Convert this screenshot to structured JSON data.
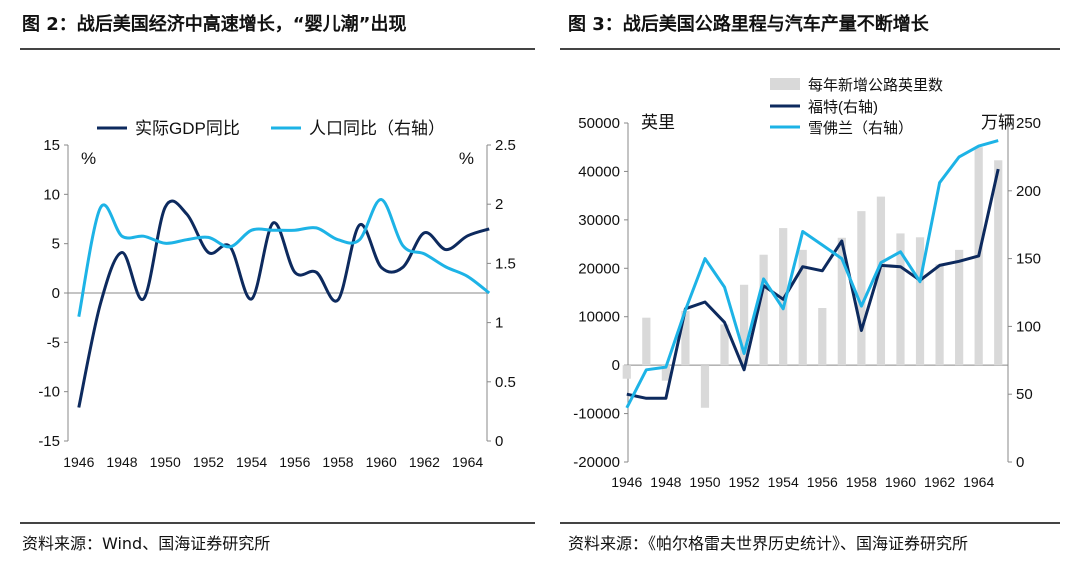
{
  "left": {
    "title": "图 2：战后美国经济中高速增长，“婴儿潮”出现",
    "source": "资料来源：Wind、国海证券研究所"
  },
  "right": {
    "title": "图 3：战后美国公路里程与汽车产量不断增长",
    "source": "资料来源：《帕尔格雷夫世界历史统计》、国海证券研究所"
  },
  "chart_data": [
    {
      "type": "line",
      "title": "战后美国经济中高速增长，“婴儿潮”出现",
      "x": [
        1946,
        1947,
        1948,
        1949,
        1950,
        1951,
        1952,
        1953,
        1954,
        1955,
        1956,
        1957,
        1958,
        1959,
        1960,
        1961,
        1962,
        1963,
        1964,
        1965
      ],
      "x_ticks": [
        "1946",
        "1948",
        "1950",
        "1952",
        "1954",
        "1956",
        "1958",
        "1960",
        "1962",
        "1964"
      ],
      "y_left_label": "%",
      "y_right_label": "%",
      "y_left_lim": [
        -15,
        15
      ],
      "y_left_ticks": [
        "15",
        "10",
        "5",
        "0",
        "-5",
        "-10",
        "-15"
      ],
      "y_right_lim": [
        0,
        2.5
      ],
      "y_right_ticks": [
        "2.5",
        "2",
        "1.5",
        "1",
        "0.5",
        "0"
      ],
      "legend_position": "top",
      "series": [
        {
          "name": "实际GDP同比",
          "axis": "left",
          "color": "#0d2a5e",
          "values": [
            -11.6,
            -1.1,
            4.1,
            -0.6,
            8.7,
            8.0,
            4.1,
            4.7,
            -0.6,
            7.1,
            2.1,
            2.1,
            -0.7,
            6.9,
            2.6,
            2.6,
            6.1,
            4.4,
            5.8,
            6.5
          ]
        },
        {
          "name": "人口同比（右轴）",
          "axis": "right",
          "color": "#1db3e6",
          "values": [
            1.05,
            1.97,
            1.73,
            1.73,
            1.67,
            1.7,
            1.72,
            1.64,
            1.78,
            1.78,
            1.78,
            1.8,
            1.7,
            1.7,
            2.04,
            1.65,
            1.58,
            1.47,
            1.39,
            1.25
          ]
        }
      ],
      "grid": false
    },
    {
      "type": "bar+line",
      "title": "战后美国公路里程与汽车产量不断增长",
      "x": [
        1946,
        1947,
        1948,
        1949,
        1950,
        1951,
        1952,
        1953,
        1954,
        1955,
        1956,
        1957,
        1958,
        1959,
        1960,
        1961,
        1962,
        1963,
        1964,
        1965
      ],
      "x_ticks": [
        "1946",
        "1948",
        "1950",
        "1952",
        "1954",
        "1956",
        "1958",
        "1960",
        "1962",
        "1964"
      ],
      "y_left_label": "英里",
      "y_right_label": "万辆",
      "y_left_lim": [
        -20000,
        50000
      ],
      "y_left_ticks": [
        "50000",
        "40000",
        "30000",
        "20000",
        "10000",
        "0",
        "-10000",
        "-20000"
      ],
      "y_right_lim": [
        0,
        250
      ],
      "y_right_ticks": [
        "250",
        "200",
        "150",
        "100",
        "50",
        "0"
      ],
      "legend_position": "top-right",
      "series": [
        {
          "name": "每年新增公路英里数",
          "kind": "bar",
          "axis": "left",
          "color": "#d9d9d9",
          "values": [
            -2800,
            9800,
            -3200,
            11200,
            -8800,
            8400,
            16600,
            22800,
            28300,
            23800,
            11800,
            26300,
            31800,
            34800,
            27200,
            26400,
            20800,
            23800,
            45000,
            42300
          ]
        },
        {
          "name": "福特(右轴)",
          "kind": "line",
          "axis": "right",
          "color": "#0d2a5e",
          "values": [
            50,
            47,
            47,
            113,
            118,
            103,
            68,
            130,
            120,
            144,
            141,
            163,
            97,
            145,
            144,
            134,
            145,
            148,
            152,
            216
          ]
        },
        {
          "name": "雪佛兰（右轴）",
          "kind": "line",
          "axis": "right",
          "color": "#1db3e6",
          "values": [
            40,
            68,
            70,
            112,
            150,
            129,
            80,
            135,
            113,
            170,
            160,
            150,
            115,
            147,
            155,
            133,
            206,
            225,
            233,
            237
          ]
        }
      ],
      "grid": false
    }
  ]
}
